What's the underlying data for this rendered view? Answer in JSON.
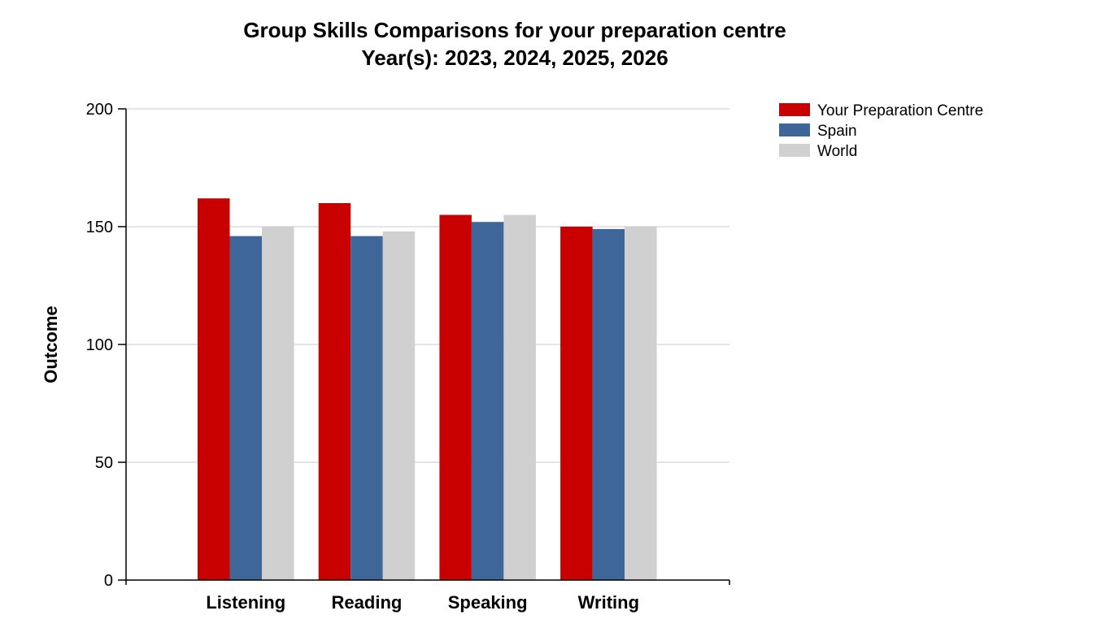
{
  "chart_data": {
    "type": "bar",
    "title": "Group Skills Comparisons for your preparation centre",
    "subtitle": "Year(s): 2023, 2024, 2025, 2026",
    "xlabel": "",
    "ylabel": "Outcome",
    "categories": [
      "Listening",
      "Reading",
      "Speaking",
      "Writing"
    ],
    "series": [
      {
        "name": "Your Preparation Centre",
        "color": "#c80000",
        "values": [
          162,
          160,
          155,
          150
        ]
      },
      {
        "name": "Spain",
        "color": "#3e6699",
        "values": [
          146,
          146,
          152,
          149
        ]
      },
      {
        "name": "World",
        "color": "#d0d0d0",
        "values": [
          150,
          148,
          155,
          150
        ]
      }
    ],
    "ylim": [
      0,
      200
    ],
    "yticks": [
      0,
      50,
      100,
      150,
      200
    ],
    "grid": true,
    "legend_position": "top-right"
  }
}
